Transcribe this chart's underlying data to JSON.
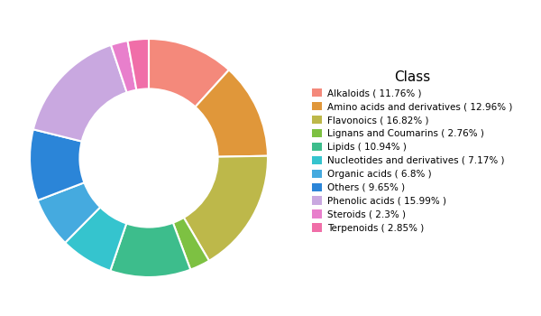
{
  "classes": [
    "Alkaloids ( 11.76% )",
    "Amino acids and derivatives ( 12.96% )",
    "Flavonoics ( 16.82% )",
    "Lignans and Coumarins ( 2.76% )",
    "Lipids ( 10.94% )",
    "Nucleotides and derivatives ( 7.17% )",
    "Organic acids ( 6.8% )",
    "Others ( 9.65% )",
    "Phenolic acids ( 15.99% )",
    "Steroids ( 2.3% )",
    "Terpenoids ( 2.85% )"
  ],
  "values": [
    11.76,
    12.96,
    16.82,
    2.76,
    10.94,
    7.17,
    6.8,
    9.65,
    15.99,
    2.3,
    2.85
  ],
  "colors": [
    "#F4897B",
    "#E0973A",
    "#BDB84A",
    "#7DC142",
    "#3DBD8C",
    "#35C4CE",
    "#45AADF",
    "#2B85D8",
    "#C9A8E0",
    "#E87FCC",
    "#F06EA8"
  ],
  "legend_title": "Class",
  "legend_title_fontsize": 11,
  "legend_fontsize": 7.5,
  "background_color": "#ffffff",
  "donut_width": 0.42,
  "start_angle": 90
}
